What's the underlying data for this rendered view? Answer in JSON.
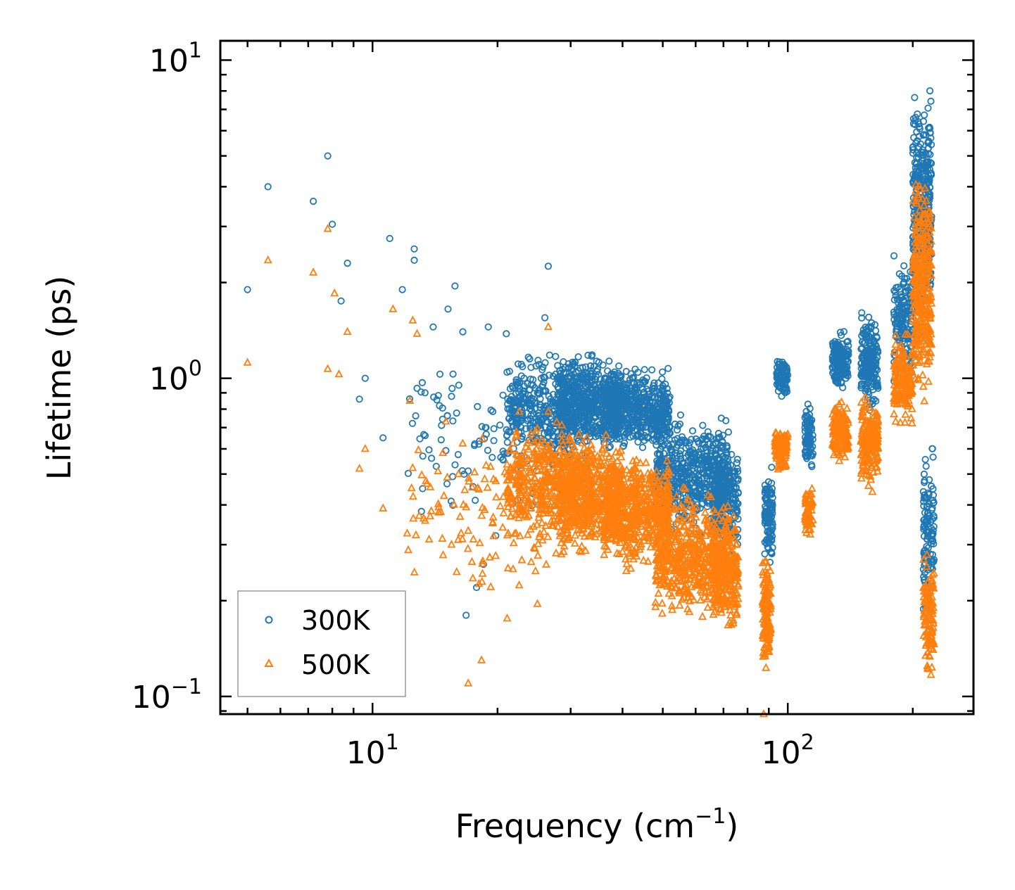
{
  "chart_data": {
    "type": "scatter",
    "title": "",
    "xlabel": "Frequency (cm",
    "xlabel_sup": "−1",
    "xlabel_suffix": ")",
    "ylabel": "Lifetime (ps)",
    "xscale": "log",
    "yscale": "log",
    "xlim": [
      4.3,
      280
    ],
    "ylim": [
      0.088,
      11.5
    ],
    "x_ticks": [
      {
        "value": 10,
        "base": "10",
        "exp": "1"
      },
      {
        "value": 100,
        "base": "10",
        "exp": "2"
      }
    ],
    "y_ticks": [
      {
        "value": 0.1,
        "base": "10",
        "exp": "−1"
      },
      {
        "value": 1,
        "base": "10",
        "exp": "0"
      },
      {
        "value": 10,
        "base": "10",
        "exp": "1"
      }
    ],
    "legend": {
      "position": "lower-left",
      "entries": [
        "300K",
        "500K"
      ]
    },
    "series": [
      {
        "name": "300K",
        "marker": "circle",
        "color": "#1f77b4",
        "points": [
          [
            5.0,
            1.9
          ],
          [
            5.6,
            4.0
          ],
          [
            7.2,
            3.6
          ],
          [
            7.8,
            5.0
          ],
          [
            8.0,
            3.05
          ],
          [
            8.4,
            1.75
          ],
          [
            8.7,
            2.3
          ],
          [
            9.3,
            0.86
          ],
          [
            9.6,
            1.0
          ],
          [
            11.0,
            2.75
          ],
          [
            11.8,
            1.9
          ],
          [
            12.6,
            2.55
          ],
          [
            12.6,
            2.35
          ],
          [
            12.8,
            0.93
          ],
          [
            14.0,
            1.45
          ],
          [
            14.5,
            0.82
          ],
          [
            15.2,
            1.65
          ],
          [
            15.8,
            1.95
          ],
          [
            16.5,
            1.4
          ],
          [
            19.0,
            1.45
          ],
          [
            26.5,
            2.25
          ],
          [
            26.0,
            1.55
          ],
          [
            21.0,
            1.38
          ],
          [
            10.6,
            0.65
          ],
          [
            16.8,
            0.18
          ],
          [
            17.8,
            0.22
          ],
          [
            19.8,
            0.32
          ],
          [
            18.5,
            0.26
          ],
          [
            13.2,
            0.45
          ]
        ],
        "clusters": [
          {
            "x": [
              12,
              30
            ],
            "y": [
              0.32,
              1.3
            ],
            "n": 110
          },
          {
            "x": [
              21,
              34
            ],
            "y": [
              0.5,
              1.3
            ],
            "n": 420
          },
          {
            "x": [
              28,
              40
            ],
            "y": [
              0.55,
              1.25
            ],
            "n": 500
          },
          {
            "x": [
              36,
              52
            ],
            "y": [
              0.55,
              1.15
            ],
            "n": 550
          },
          {
            "x": [
              48,
              72
            ],
            "y": [
              0.3,
              0.82
            ],
            "n": 500
          },
          {
            "x": [
              66,
              76
            ],
            "y": [
              0.26,
              0.7
            ],
            "n": 220
          },
          {
            "x": [
              88,
              92
            ],
            "y": [
              0.24,
              0.57
            ],
            "n": 110
          },
          {
            "x": [
              94,
              100
            ],
            "y": [
              0.85,
              1.2
            ],
            "n": 100
          },
          {
            "x": [
              110,
              115
            ],
            "y": [
              0.48,
              0.88
            ],
            "n": 80
          },
          {
            "x": [
              128,
              140
            ],
            "y": [
              0.87,
              1.45
            ],
            "n": 170
          },
          {
            "x": [
              150,
              165
            ],
            "y": [
              0.75,
              1.7
            ],
            "n": 190
          },
          {
            "x": [
              180,
              200
            ],
            "y": [
              0.9,
              2.6
            ],
            "n": 160
          },
          {
            "x": [
              200,
              222
            ],
            "y": [
              1.3,
              9.0
            ],
            "n": 360
          },
          {
            "x": [
              212,
              225
            ],
            "y": [
              0.15,
              0.7
            ],
            "n": 120
          }
        ]
      },
      {
        "name": "500K",
        "marker": "triangle",
        "color": "#ff7f0e",
        "points": [
          [
            5.0,
            1.12
          ],
          [
            5.6,
            2.35
          ],
          [
            7.2,
            2.15
          ],
          [
            7.8,
            2.95
          ],
          [
            7.8,
            1.07
          ],
          [
            8.1,
            1.85
          ],
          [
            8.3,
            1.03
          ],
          [
            8.7,
            1.4
          ],
          [
            9.3,
            0.52
          ],
          [
            9.6,
            0.6
          ],
          [
            10.6,
            0.39
          ],
          [
            11.2,
            1.65
          ],
          [
            12.5,
            1.52
          ],
          [
            12.8,
            1.38
          ],
          [
            14.6,
            0.38
          ],
          [
            17.0,
            0.11
          ],
          [
            18.3,
            0.13
          ],
          [
            12.3,
            0.85
          ],
          [
            15.5,
            0.3
          ],
          [
            16.1,
            0.5
          ],
          [
            26.5,
            1.45
          ],
          [
            87.5,
            0.088
          ]
        ],
        "clusters": [
          {
            "x": [
              12,
              30
            ],
            "y": [
              0.15,
              0.95
            ],
            "n": 130
          },
          {
            "x": [
              21,
              34
            ],
            "y": [
              0.28,
              0.8
            ],
            "n": 450
          },
          {
            "x": [
              28,
              40
            ],
            "y": [
              0.26,
              0.7
            ],
            "n": 500
          },
          {
            "x": [
              36,
              52
            ],
            "y": [
              0.24,
              0.62
            ],
            "n": 550
          },
          {
            "x": [
              48,
              72
            ],
            "y": [
              0.16,
              0.48
            ],
            "n": 520
          },
          {
            "x": [
              66,
              76
            ],
            "y": [
              0.15,
              0.4
            ],
            "n": 220
          },
          {
            "x": [
              87,
              91
            ],
            "y": [
              0.11,
              0.31
            ],
            "n": 120
          },
          {
            "x": [
              93,
              100
            ],
            "y": [
              0.5,
              0.72
            ],
            "n": 100
          },
          {
            "x": [
              110,
              115
            ],
            "y": [
              0.3,
              0.48
            ],
            "n": 70
          },
          {
            "x": [
              128,
              140
            ],
            "y": [
              0.52,
              0.88
            ],
            "n": 160
          },
          {
            "x": [
              150,
              165
            ],
            "y": [
              0.42,
              0.95
            ],
            "n": 180
          },
          {
            "x": [
              180,
              200
            ],
            "y": [
              0.65,
              1.5
            ],
            "n": 150
          },
          {
            "x": [
              200,
              222
            ],
            "y": [
              0.75,
              5.2
            ],
            "n": 330
          },
          {
            "x": [
              212,
              225
            ],
            "y": [
              0.1,
              0.3
            ],
            "n": 110
          }
        ]
      }
    ]
  }
}
